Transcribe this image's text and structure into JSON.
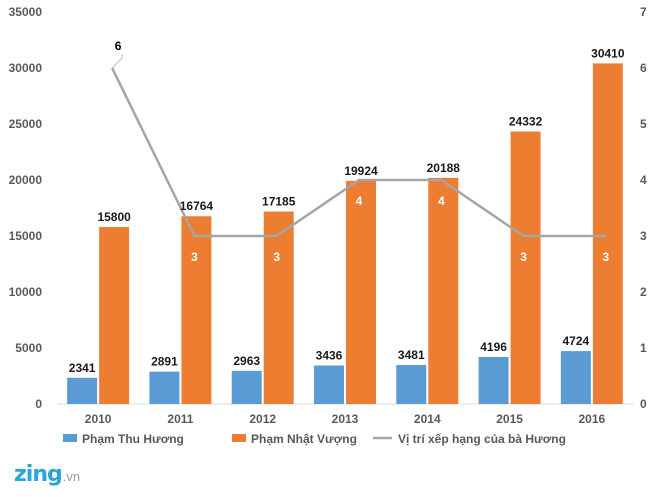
{
  "chart_data": {
    "type": "bar",
    "categories": [
      "2010",
      "2011",
      "2012",
      "2013",
      "2014",
      "2015",
      "2016"
    ],
    "series": [
      {
        "name": "Phạm Thu Hương",
        "type": "bar",
        "axis": "left",
        "color": "#5b9bd5",
        "values": [
          2341,
          2891,
          2963,
          3436,
          3481,
          4196,
          4724
        ]
      },
      {
        "name": "Phạm Nhật Vượng",
        "type": "bar",
        "axis": "left",
        "color": "#ed7d31",
        "values": [
          15800,
          16764,
          17185,
          19924,
          20188,
          24332,
          30410
        ]
      },
      {
        "name": "Vị trí xếp hạng của bà Hương",
        "type": "line",
        "axis": "right",
        "color": "#a5a5a5",
        "values": [
          6,
          3,
          3,
          4,
          4,
          3,
          3
        ]
      }
    ],
    "left_ticks": [
      "0",
      "5000",
      "10000",
      "15000",
      "20000",
      "25000",
      "30000",
      "35000"
    ],
    "right_ticks": [
      "0",
      "1",
      "2",
      "3",
      "4",
      "5",
      "6",
      "7"
    ],
    "ylim_left": [
      0,
      35000
    ],
    "ylim_right": [
      0,
      7
    ],
    "grid": false,
    "legend_position": "bottom"
  },
  "brand": {
    "name": "zing",
    "suffix": ".vn"
  }
}
